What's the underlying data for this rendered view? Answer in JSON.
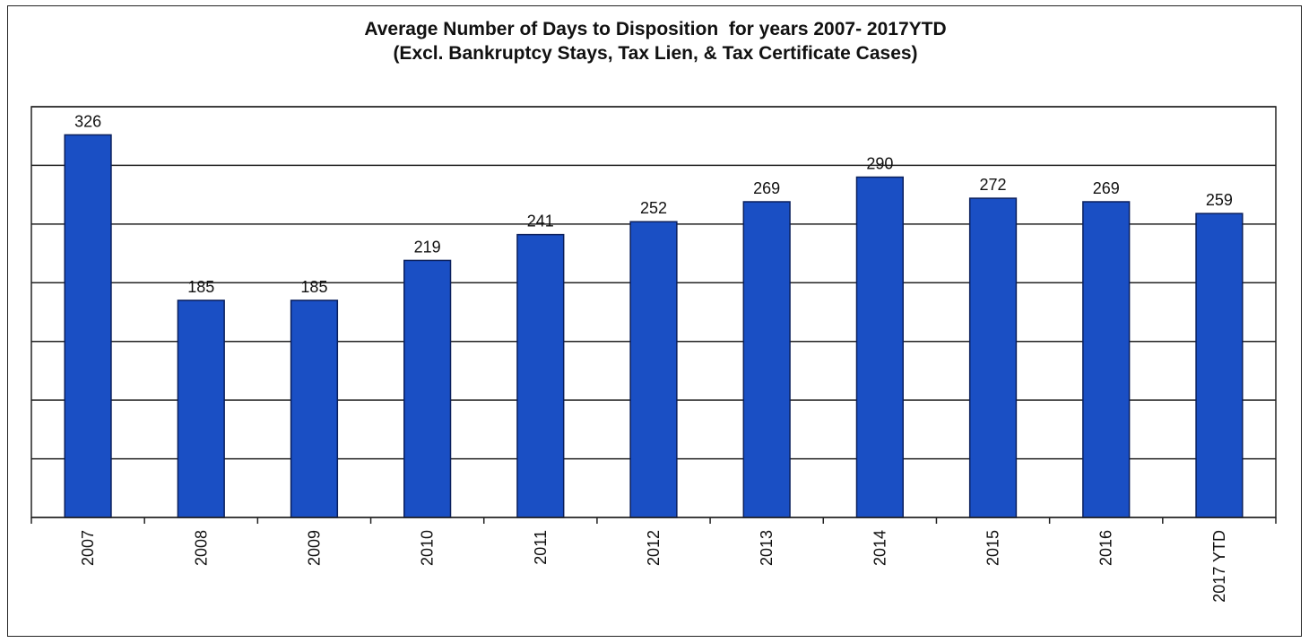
{
  "chart_data": {
    "type": "bar",
    "title": "Average Number of Days to Disposition  for years 2007- 2017YTD",
    "subtitle": "(Excl. Bankruptcy Stays, Tax Lien, & Tax Certificate Cases)",
    "categories": [
      "2007",
      "2008",
      "2009",
      "2010",
      "2011",
      "2012",
      "2013",
      "2014",
      "2015",
      "2016",
      "2017 YTD"
    ],
    "values": [
      326,
      185,
      185,
      219,
      241,
      252,
      269,
      290,
      272,
      269,
      259
    ],
    "xlabel": "",
    "ylabel": "",
    "ylim": [
      0,
      350
    ],
    "gridlines": [
      50,
      100,
      150,
      200,
      250,
      300,
      350
    ],
    "grid": true,
    "legend": "none",
    "bar_color": "#1a4fc4",
    "bar_edge_color": "#0a1f5c"
  }
}
